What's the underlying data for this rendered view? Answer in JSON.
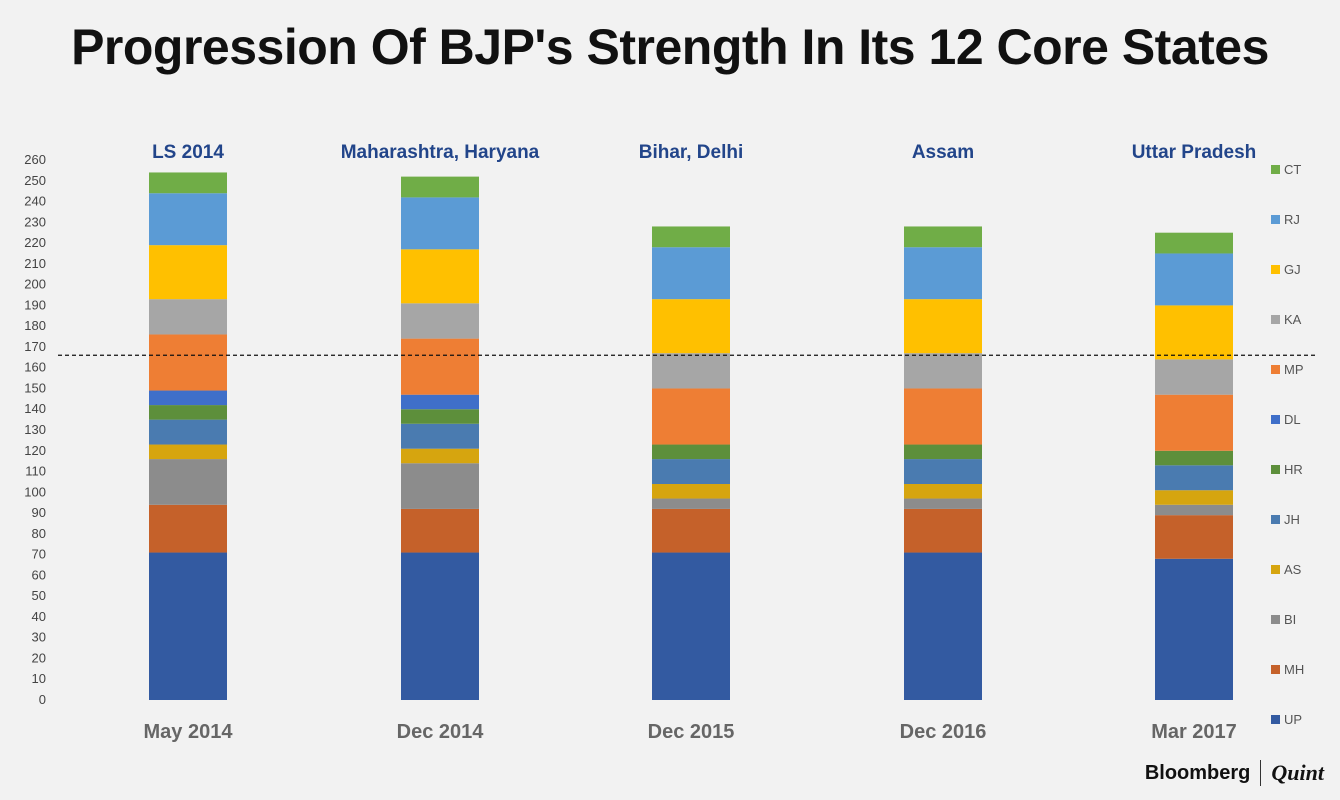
{
  "chart_data": {
    "type": "bar",
    "stacked": true,
    "title": "Progression Of BJP's Strength In Its 12 Core States",
    "categories": [
      "May 2014",
      "Dec 2014",
      "Dec 2015",
      "Dec 2016",
      "Mar 2017"
    ],
    "annotations": [
      "LS 2014",
      "Maharashtra, Haryana",
      "Bihar, Delhi",
      "Assam",
      "Uttar Pradesh"
    ],
    "ylim": [
      0,
      260
    ],
    "yticks": [
      0,
      10,
      20,
      30,
      40,
      50,
      60,
      70,
      80,
      90,
      100,
      110,
      120,
      130,
      140,
      150,
      160,
      170,
      180,
      190,
      200,
      210,
      220,
      230,
      240,
      250,
      260
    ],
    "reference_line": 166,
    "legend_position": "right",
    "series": [
      {
        "name": "UP",
        "color": "#335aa1",
        "values": [
          71,
          71,
          71,
          71,
          68
        ]
      },
      {
        "name": "MH",
        "color": "#c5612a",
        "values": [
          23,
          21,
          21,
          21,
          21
        ]
      },
      {
        "name": "BI",
        "color": "#8c8c8c",
        "values": [
          22,
          22,
          5,
          5,
          5
        ]
      },
      {
        "name": "AS",
        "color": "#d6a50f",
        "values": [
          7,
          7,
          7,
          7,
          7
        ]
      },
      {
        "name": "JH",
        "color": "#4a7bb0",
        "values": [
          12,
          12,
          12,
          12,
          12
        ]
      },
      {
        "name": "HR",
        "color": "#5d8f3b",
        "values": [
          7,
          7,
          7,
          7,
          7
        ]
      },
      {
        "name": "DL",
        "color": "#3f6fc9",
        "values": [
          7,
          7,
          0,
          0,
          0
        ]
      },
      {
        "name": "MP",
        "color": "#ee7e34",
        "values": [
          27,
          27,
          27,
          27,
          27
        ]
      },
      {
        "name": "KA",
        "color": "#a6a6a6",
        "values": [
          17,
          17,
          17,
          17,
          17
        ]
      },
      {
        "name": "GJ",
        "color": "#ffc000",
        "values": [
          26,
          26,
          26,
          26,
          26
        ]
      },
      {
        "name": "RJ",
        "color": "#5b9bd5",
        "values": [
          25,
          25,
          25,
          25,
          25
        ]
      },
      {
        "name": "CT",
        "color": "#70ad47",
        "values": [
          10,
          10,
          10,
          10,
          10
        ]
      }
    ]
  },
  "brand": {
    "left": "Bloomberg",
    "right": "Quint"
  }
}
